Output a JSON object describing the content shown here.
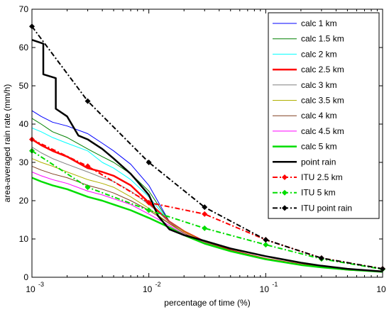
{
  "chart_data": {
    "type": "line",
    "xlabel": "percentage of time (%)",
    "ylabel": "area-averaged rain rate (mm/h)",
    "xscale": "log",
    "xlim": [
      0.001,
      1
    ],
    "ylim": [
      0,
      70
    ],
    "x_ticks": [
      0.001,
      0.01,
      0.1,
      1
    ],
    "x_tick_bases": [
      "10",
      "10",
      "10",
      "10"
    ],
    "x_tick_exps": [
      "-3",
      "-2",
      "-1",
      "0"
    ],
    "y_ticks": [
      "0",
      "10",
      "20",
      "30",
      "40",
      "50",
      "60",
      "70"
    ],
    "legend_position": "top-right",
    "grid": false,
    "series": [
      {
        "name": "calc 1 km",
        "color": "#0000ff",
        "width": 1,
        "dash": "",
        "marker": false,
        "x": [
          0.001,
          0.0012,
          0.0015,
          0.002,
          0.003,
          0.004,
          0.005,
          0.007,
          0.01,
          0.015,
          0.02,
          0.03,
          0.05,
          0.1,
          0.2,
          0.3,
          0.5,
          1
        ],
        "y": [
          43.5,
          42,
          40.5,
          39.5,
          37.5,
          35,
          33,
          29.5,
          24,
          14.5,
          12,
          9.5,
          7,
          4.8,
          3.3,
          2.7,
          2.0,
          1.5
        ]
      },
      {
        "name": "calc 1.5 km",
        "color": "#008000",
        "width": 1,
        "dash": "",
        "marker": false,
        "x": [
          0.001,
          0.0012,
          0.0015,
          0.002,
          0.003,
          0.004,
          0.005,
          0.007,
          0.01,
          0.015,
          0.02,
          0.03,
          0.05,
          0.1,
          0.2,
          0.3,
          0.5,
          1
        ],
        "y": [
          41.5,
          40,
          38,
          36.5,
          33.5,
          31.5,
          30,
          27,
          22.5,
          14.5,
          12,
          9.4,
          7,
          4.8,
          3.3,
          2.7,
          2.0,
          1.5
        ]
      },
      {
        "name": "calc 2 km",
        "color": "#00ffff",
        "width": 1,
        "dash": "",
        "marker": false,
        "x": [
          0.001,
          0.0012,
          0.0015,
          0.002,
          0.003,
          0.004,
          0.005,
          0.007,
          0.01,
          0.015,
          0.02,
          0.03,
          0.05,
          0.1,
          0.2,
          0.3,
          0.5,
          1
        ],
        "y": [
          39,
          38,
          36.5,
          35,
          33,
          30,
          28.5,
          25.5,
          21,
          14.5,
          12,
          9.3,
          7,
          4.8,
          3.3,
          2.7,
          2.0,
          1.5
        ]
      },
      {
        "name": "calc 2.5 km",
        "color": "#ff0000",
        "width": 2.5,
        "dash": "",
        "marker": false,
        "x": [
          0.001,
          0.0012,
          0.0015,
          0.002,
          0.003,
          0.004,
          0.005,
          0.007,
          0.01,
          0.015,
          0.02,
          0.03,
          0.05,
          0.1,
          0.2,
          0.3,
          0.5,
          1
        ],
        "y": [
          36,
          34.5,
          33,
          31.5,
          28.5,
          27.5,
          26.5,
          24,
          19.5,
          14.5,
          12,
          9.3,
          7,
          4.8,
          3.3,
          2.7,
          2.0,
          1.5
        ]
      },
      {
        "name": "calc 3 km",
        "color": "#808080",
        "width": 1,
        "dash": "",
        "marker": false,
        "x": [
          0.001,
          0.0012,
          0.0015,
          0.002,
          0.003,
          0.004,
          0.005,
          0.007,
          0.01,
          0.015,
          0.02,
          0.03,
          0.05,
          0.1,
          0.2,
          0.3,
          0.5,
          1
        ],
        "y": [
          34,
          32.5,
          31,
          29.5,
          27.5,
          26,
          25,
          22.5,
          19,
          14.5,
          12,
          9.2,
          7,
          4.8,
          3.3,
          2.7,
          2.0,
          1.5
        ]
      },
      {
        "name": "calc 3.5 km",
        "color": "#b0b000",
        "width": 1,
        "dash": "",
        "marker": false,
        "x": [
          0.001,
          0.0012,
          0.0015,
          0.002,
          0.003,
          0.004,
          0.005,
          0.007,
          0.01,
          0.015,
          0.02,
          0.03,
          0.05,
          0.1,
          0.2,
          0.3,
          0.5,
          1
        ],
        "y": [
          31,
          30,
          29,
          27.5,
          25.5,
          24.5,
          23.5,
          21,
          18,
          14,
          12,
          9.1,
          7,
          4.8,
          3.3,
          2.7,
          2.0,
          1.5
        ]
      },
      {
        "name": "calc 4 km",
        "color": "#804020",
        "width": 1,
        "dash": "",
        "marker": false,
        "x": [
          0.001,
          0.0012,
          0.0015,
          0.002,
          0.003,
          0.004,
          0.005,
          0.007,
          0.01,
          0.015,
          0.02,
          0.03,
          0.05,
          0.1,
          0.2,
          0.3,
          0.5,
          1
        ],
        "y": [
          29,
          28,
          27,
          26,
          24,
          23,
          22,
          20,
          17.5,
          14,
          11.5,
          9,
          7,
          4.8,
          3.3,
          2.7,
          2.0,
          1.5
        ]
      },
      {
        "name": "calc 4.5 km",
        "color": "#ff00ff",
        "width": 1,
        "dash": "",
        "marker": false,
        "x": [
          0.001,
          0.0012,
          0.0015,
          0.002,
          0.003,
          0.004,
          0.005,
          0.007,
          0.01,
          0.015,
          0.02,
          0.03,
          0.05,
          0.1,
          0.2,
          0.3,
          0.5,
          1
        ],
        "y": [
          27.5,
          26.5,
          25.5,
          24.5,
          22.5,
          21.5,
          20.5,
          19,
          16.5,
          13.5,
          11.2,
          9,
          6.8,
          4.8,
          3.3,
          2.7,
          2.0,
          1.5
        ]
      },
      {
        "name": "calc 5 km",
        "color": "#00dd00",
        "width": 2.5,
        "dash": "",
        "marker": false,
        "x": [
          0.001,
          0.0012,
          0.0015,
          0.002,
          0.003,
          0.004,
          0.005,
          0.007,
          0.01,
          0.015,
          0.02,
          0.03,
          0.05,
          0.1,
          0.2,
          0.3,
          0.5,
          1
        ],
        "y": [
          26,
          25,
          24,
          23,
          21,
          20,
          19,
          17.5,
          15.5,
          13,
          11,
          8.8,
          6.8,
          4.7,
          3.2,
          2.6,
          2.0,
          1.4
        ]
      },
      {
        "name": "point rain",
        "color": "#000000",
        "width": 2.5,
        "dash": "",
        "marker": false,
        "x": [
          0.001,
          0.00125,
          0.00125,
          0.0016,
          0.0016,
          0.002,
          0.0025,
          0.003,
          0.004,
          0.005,
          0.007,
          0.008,
          0.01,
          0.012,
          0.015,
          0.02,
          0.03,
          0.05,
          0.1,
          0.2,
          0.3,
          0.5,
          1
        ],
        "y": [
          62,
          61,
          53,
          52,
          44,
          42,
          37,
          36,
          33.5,
          31,
          27,
          25,
          21.5,
          16,
          12.5,
          11,
          9.5,
          7.5,
          5.5,
          3.8,
          3,
          2.2,
          1.5
        ]
      },
      {
        "name": "ITU 2.5 km",
        "color": "#ff0000",
        "width": 2,
        "dash": "7,3,2,3",
        "marker": true,
        "x": [
          0.001,
          0.003,
          0.01,
          0.03,
          0.1,
          0.3,
          1
        ],
        "y": [
          36,
          29,
          19.5,
          16.5,
          9.8,
          5,
          2.2
        ]
      },
      {
        "name": "ITU 5 km",
        "color": "#00dd00",
        "width": 2,
        "dash": "7,3,2,3",
        "marker": true,
        "x": [
          0.001,
          0.003,
          0.01,
          0.03,
          0.1,
          0.3,
          1
        ],
        "y": [
          33,
          23.5,
          17.5,
          12.8,
          8.5,
          4.8,
          2.1
        ]
      },
      {
        "name": "ITU point rain",
        "color": "#000000",
        "width": 2,
        "dash": "7,3,2,3",
        "marker": true,
        "x": [
          0.001,
          0.003,
          0.01,
          0.03,
          0.1,
          0.3,
          1
        ],
        "y": [
          65.5,
          46,
          30,
          18.3,
          9.8,
          5,
          2.2
        ]
      }
    ]
  }
}
